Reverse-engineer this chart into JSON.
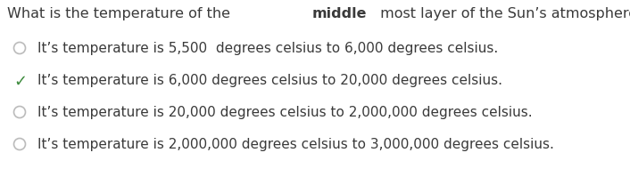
{
  "question_prefix": "What is the temperature of the ",
  "question_bold": "middle",
  "question_suffix": " most layer of the Sun’s atmosphere?",
  "options": [
    {
      "text": "It’s temperature is 5,500  degrees celsius to 6,000 degrees celsius.",
      "correct": false
    },
    {
      "text": "It’s temperature is 6,000 degrees celsius to 20,000 degrees celsius.",
      "correct": true
    },
    {
      "text": "It’s temperature is 20,000 degrees celsius to 2,000,000 degrees celsius.",
      "correct": false
    },
    {
      "text": "It’s temperature is 2,000,000 degrees celsius to 3,000,000 degrees celsius.",
      "correct": false
    }
  ],
  "bg_color": "#ffffff",
  "text_color": "#3a3a3a",
  "option_text_color": "#3a3a3a",
  "circle_color": "#bbbbbb",
  "check_color": "#3d8b3d",
  "font_size_question": 11.5,
  "font_size_options": 11.0,
  "fig_width": 7.06,
  "fig_height": 1.9,
  "dpi": 100
}
